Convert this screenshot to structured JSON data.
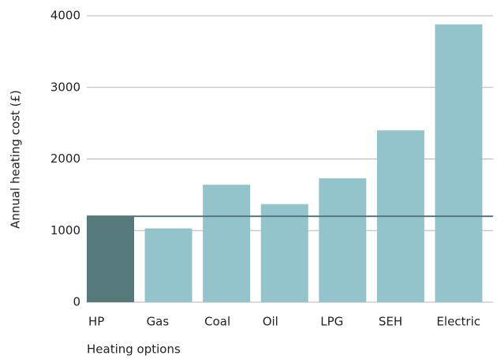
{
  "chart_data": {
    "type": "bar",
    "x_label": "Heating options",
    "y_label": "Annual heating cost (£)",
    "categories": [
      "HP",
      "Gas",
      "Coal",
      "Oil",
      "LPG",
      "SEH",
      "Electric"
    ],
    "values": [
      1200,
      1030,
      1640,
      1370,
      1730,
      2400,
      3880
    ],
    "colors": [
      "#56797c",
      "#93c4cb",
      "#93c4cb",
      "#93c4cb",
      "#93c4cb",
      "#93c4cb",
      "#93c4cb"
    ],
    "reference_line": {
      "value": 1200,
      "color": "#56797c"
    },
    "ylim": [
      0,
      4000
    ],
    "yticks": [
      0,
      1000,
      2000,
      3000,
      4000
    ],
    "grid": true
  }
}
